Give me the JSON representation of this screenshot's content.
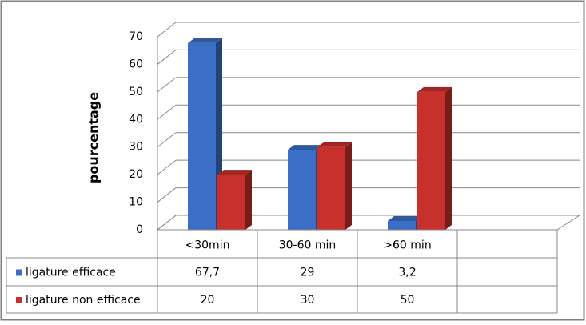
{
  "chart_data": {
    "type": "bar3d",
    "y_label": "pourcentage",
    "categories": [
      "<30min",
      "30-60 min",
      ">60 min"
    ],
    "series": [
      {
        "name": "ligature efficace",
        "color": "#3b6fc6",
        "values": [
          67.7,
          29,
          3.2
        ],
        "value_labels": [
          "67,7",
          "29",
          "3,2"
        ]
      },
      {
        "name": "ligature non efficace",
        "color": "#c8302c",
        "values": [
          20,
          30,
          50
        ],
        "value_labels": [
          "20",
          "30",
          "50"
        ]
      }
    ],
    "ylim": [
      0,
      70
    ],
    "yticks": [
      0,
      10,
      20,
      30,
      40,
      50,
      60,
      70
    ],
    "grid": true
  }
}
